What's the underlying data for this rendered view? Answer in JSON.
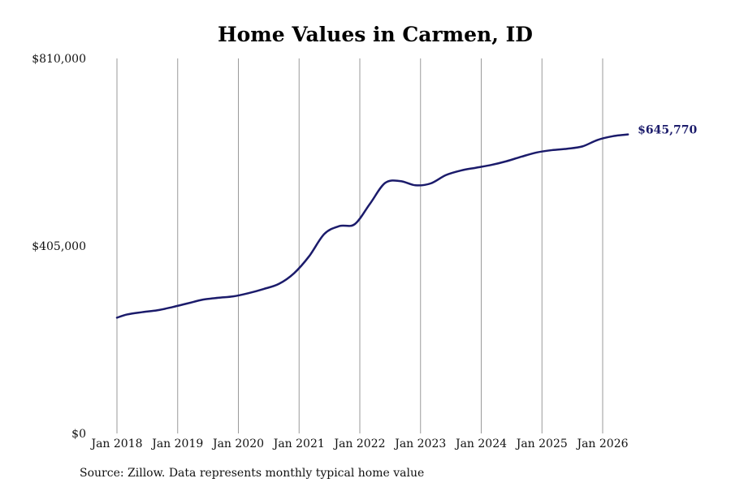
{
  "chart_data": {
    "type": "line",
    "title": "Home Values in Carmen, ID",
    "xlabel": "",
    "ylabel": "",
    "xlim": [
      "2018-01",
      "2026-07"
    ],
    "ylim": [
      0,
      810000
    ],
    "y_ticks": [
      0,
      405000,
      810000
    ],
    "y_tick_labels": [
      "$0",
      "$405,000",
      "$810,000"
    ],
    "x_ticks": [
      "2018-01",
      "2019-01",
      "2020-01",
      "2021-01",
      "2022-01",
      "2023-01",
      "2024-01",
      "2025-01",
      "2026-01"
    ],
    "x_tick_labels": [
      "Jan 2018",
      "Jan 2019",
      "Jan 2020",
      "Jan 2021",
      "Jan 2022",
      "Jan 2023",
      "Jan 2024",
      "Jan 2025",
      "Jan 2026"
    ],
    "grid": {
      "vertical": true,
      "horizontal": false
    },
    "series": [
      {
        "color": "#1b1b6b",
        "x": [
          "2018-01",
          "2018-03",
          "2018-06",
          "2018-09",
          "2018-12",
          "2019-03",
          "2019-06",
          "2019-09",
          "2019-12",
          "2020-03",
          "2020-06",
          "2020-09",
          "2020-12",
          "2021-03",
          "2021-06",
          "2021-09",
          "2021-12",
          "2022-03",
          "2022-06",
          "2022-09",
          "2022-12",
          "2023-03",
          "2023-06",
          "2023-09",
          "2023-12",
          "2024-03",
          "2024-06",
          "2024-09",
          "2024-12",
          "2025-03",
          "2025-06",
          "2025-09",
          "2025-12",
          "2026-03",
          "2026-06"
        ],
        "values": [
          250000,
          257000,
          262000,
          266000,
          273000,
          281000,
          289000,
          293000,
          296000,
          303000,
          312000,
          323000,
          346000,
          383000,
          431000,
          448000,
          452000,
          496000,
          541000,
          545000,
          536000,
          540000,
          558000,
          568000,
          574000,
          580000,
          588000,
          598000,
          607000,
          612000,
          615000,
          620000,
          634000,
          642000,
          645770
        ]
      }
    ],
    "end_label": "$645,770",
    "source_note": "Source: Zillow. Data represents monthly typical home value"
  }
}
